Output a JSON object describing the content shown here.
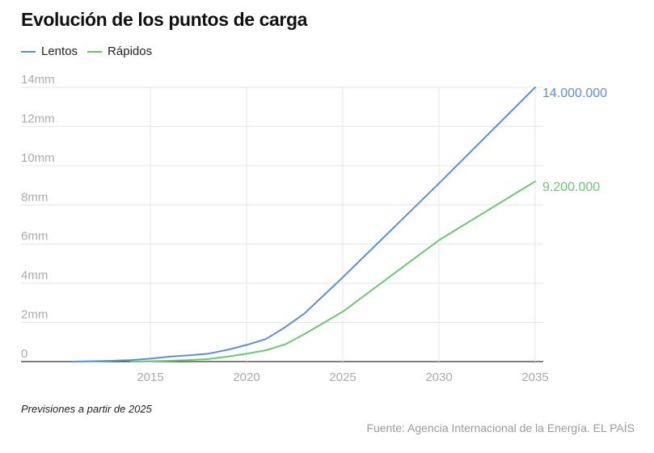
{
  "title": "Evolución de los puntos de carga",
  "legend": [
    {
      "label": "Lentos",
      "color": "#5b8fd6"
    },
    {
      "label": "Rápidos",
      "color": "#6cc870"
    }
  ],
  "note": "Previsiones a partir de 2025",
  "source": "Fuente: Agencia Internacional de la Energía. EL PAÍS",
  "chart_data": {
    "type": "line",
    "title": "Evolución de los puntos de carga",
    "xlabel": "",
    "ylabel": "",
    "xlim": [
      2010,
      2035
    ],
    "ylim": [
      0,
      14
    ],
    "x_ticks": [
      2015,
      2020,
      2025,
      2030,
      2035
    ],
    "y_ticks": [
      {
        "value": 0,
        "label": "0"
      },
      {
        "value": 2,
        "label": "2mm"
      },
      {
        "value": 4,
        "label": "4mm"
      },
      {
        "value": 6,
        "label": "6mm"
      },
      {
        "value": 8,
        "label": "8mm"
      },
      {
        "value": 10,
        "label": "10mm"
      },
      {
        "value": 12,
        "label": "12mm"
      },
      {
        "value": 14,
        "label": "14mm"
      }
    ],
    "grid": true,
    "legend_position": "top-left",
    "series": [
      {
        "name": "Lentos",
        "color": "#5b8fd6",
        "x": [
          2011,
          2012,
          2013,
          2014,
          2015,
          2016,
          2017,
          2018,
          2019,
          2020,
          2021,
          2022,
          2023,
          2025,
          2030,
          2035
        ],
        "values": [
          0.0,
          0.02,
          0.04,
          0.08,
          0.15,
          0.25,
          0.32,
          0.4,
          0.6,
          0.85,
          1.15,
          1.75,
          2.45,
          4.3,
          9.1,
          14.0
        ],
        "end_label": "14.000.000"
      },
      {
        "name": "Rápidos",
        "color": "#6cc870",
        "x": [
          2014,
          2015,
          2016,
          2017,
          2018,
          2019,
          2020,
          2021,
          2022,
          2023,
          2025,
          2030,
          2035
        ],
        "values": [
          0.0,
          0.02,
          0.04,
          0.08,
          0.13,
          0.25,
          0.4,
          0.58,
          0.88,
          1.4,
          2.55,
          6.2,
          9.2
        ],
        "end_label": "9.200.000"
      }
    ]
  }
}
